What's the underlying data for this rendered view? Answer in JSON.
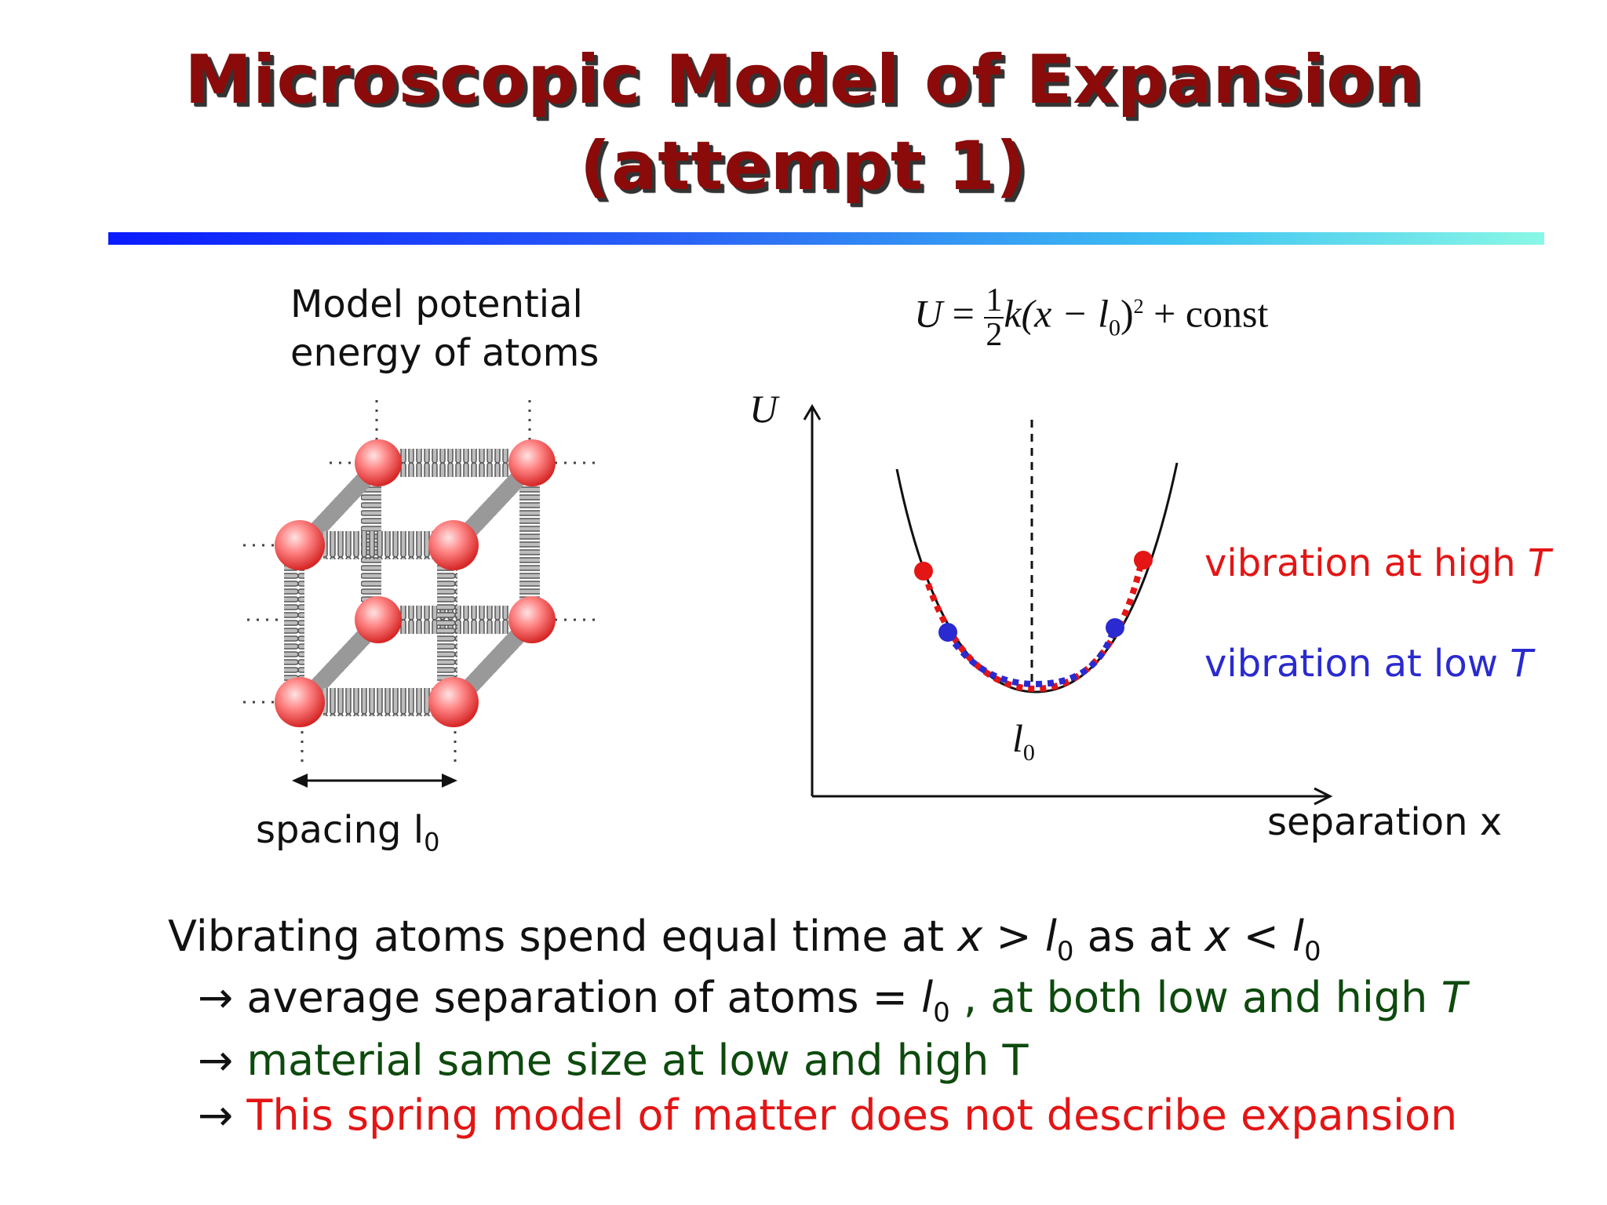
{
  "title": {
    "line1": "Microscopic Model of Expansion",
    "line2": "(attempt 1)"
  },
  "left": {
    "caption_line1": "Model potential",
    "caption_line2": "energy of atoms",
    "spacing_prefix": "spacing l",
    "spacing_sub": "0"
  },
  "equation": {
    "lhs": "U",
    "equals": "=",
    "frac_num": "1",
    "frac_den": "2",
    "body": "k(x − l",
    "sub": "0",
    "close": ")",
    "sup": "2",
    "tail": "+ const"
  },
  "graph": {
    "y_label": "U",
    "x_label": "separation x",
    "min_label": "l",
    "min_sub": "0",
    "high_label_text": "vibration at high ",
    "high_label_var": "T",
    "low_label_text": "vibration at low ",
    "low_label_var": "T"
  },
  "bottom": {
    "line1_a": "Vibrating atoms spend equal time at ",
    "line1_x1": "x",
    "line1_gt": " > ",
    "line1_l1": "l",
    "line1_s1": "0",
    "line1_b": " as at ",
    "line1_x2": "x",
    "line1_lt": " < ",
    "line1_l2": "l",
    "line1_s2": "0",
    "line2_arrow": "→",
    "line2_a": " average separation of atoms = ",
    "line2_l": "l",
    "line2_s": "0",
    "line2_b": " , at both low and high ",
    "line2_T": "T",
    "line3_arrow": "→",
    "line3": " material same size at low and high T",
    "line4_arrow": "→",
    "line4": " This spring model of matter does not describe expansion"
  },
  "colors": {
    "title": "#8b0a0a",
    "high": "#e31515",
    "low": "#2a2ad0",
    "green": "#0e4a0e"
  }
}
